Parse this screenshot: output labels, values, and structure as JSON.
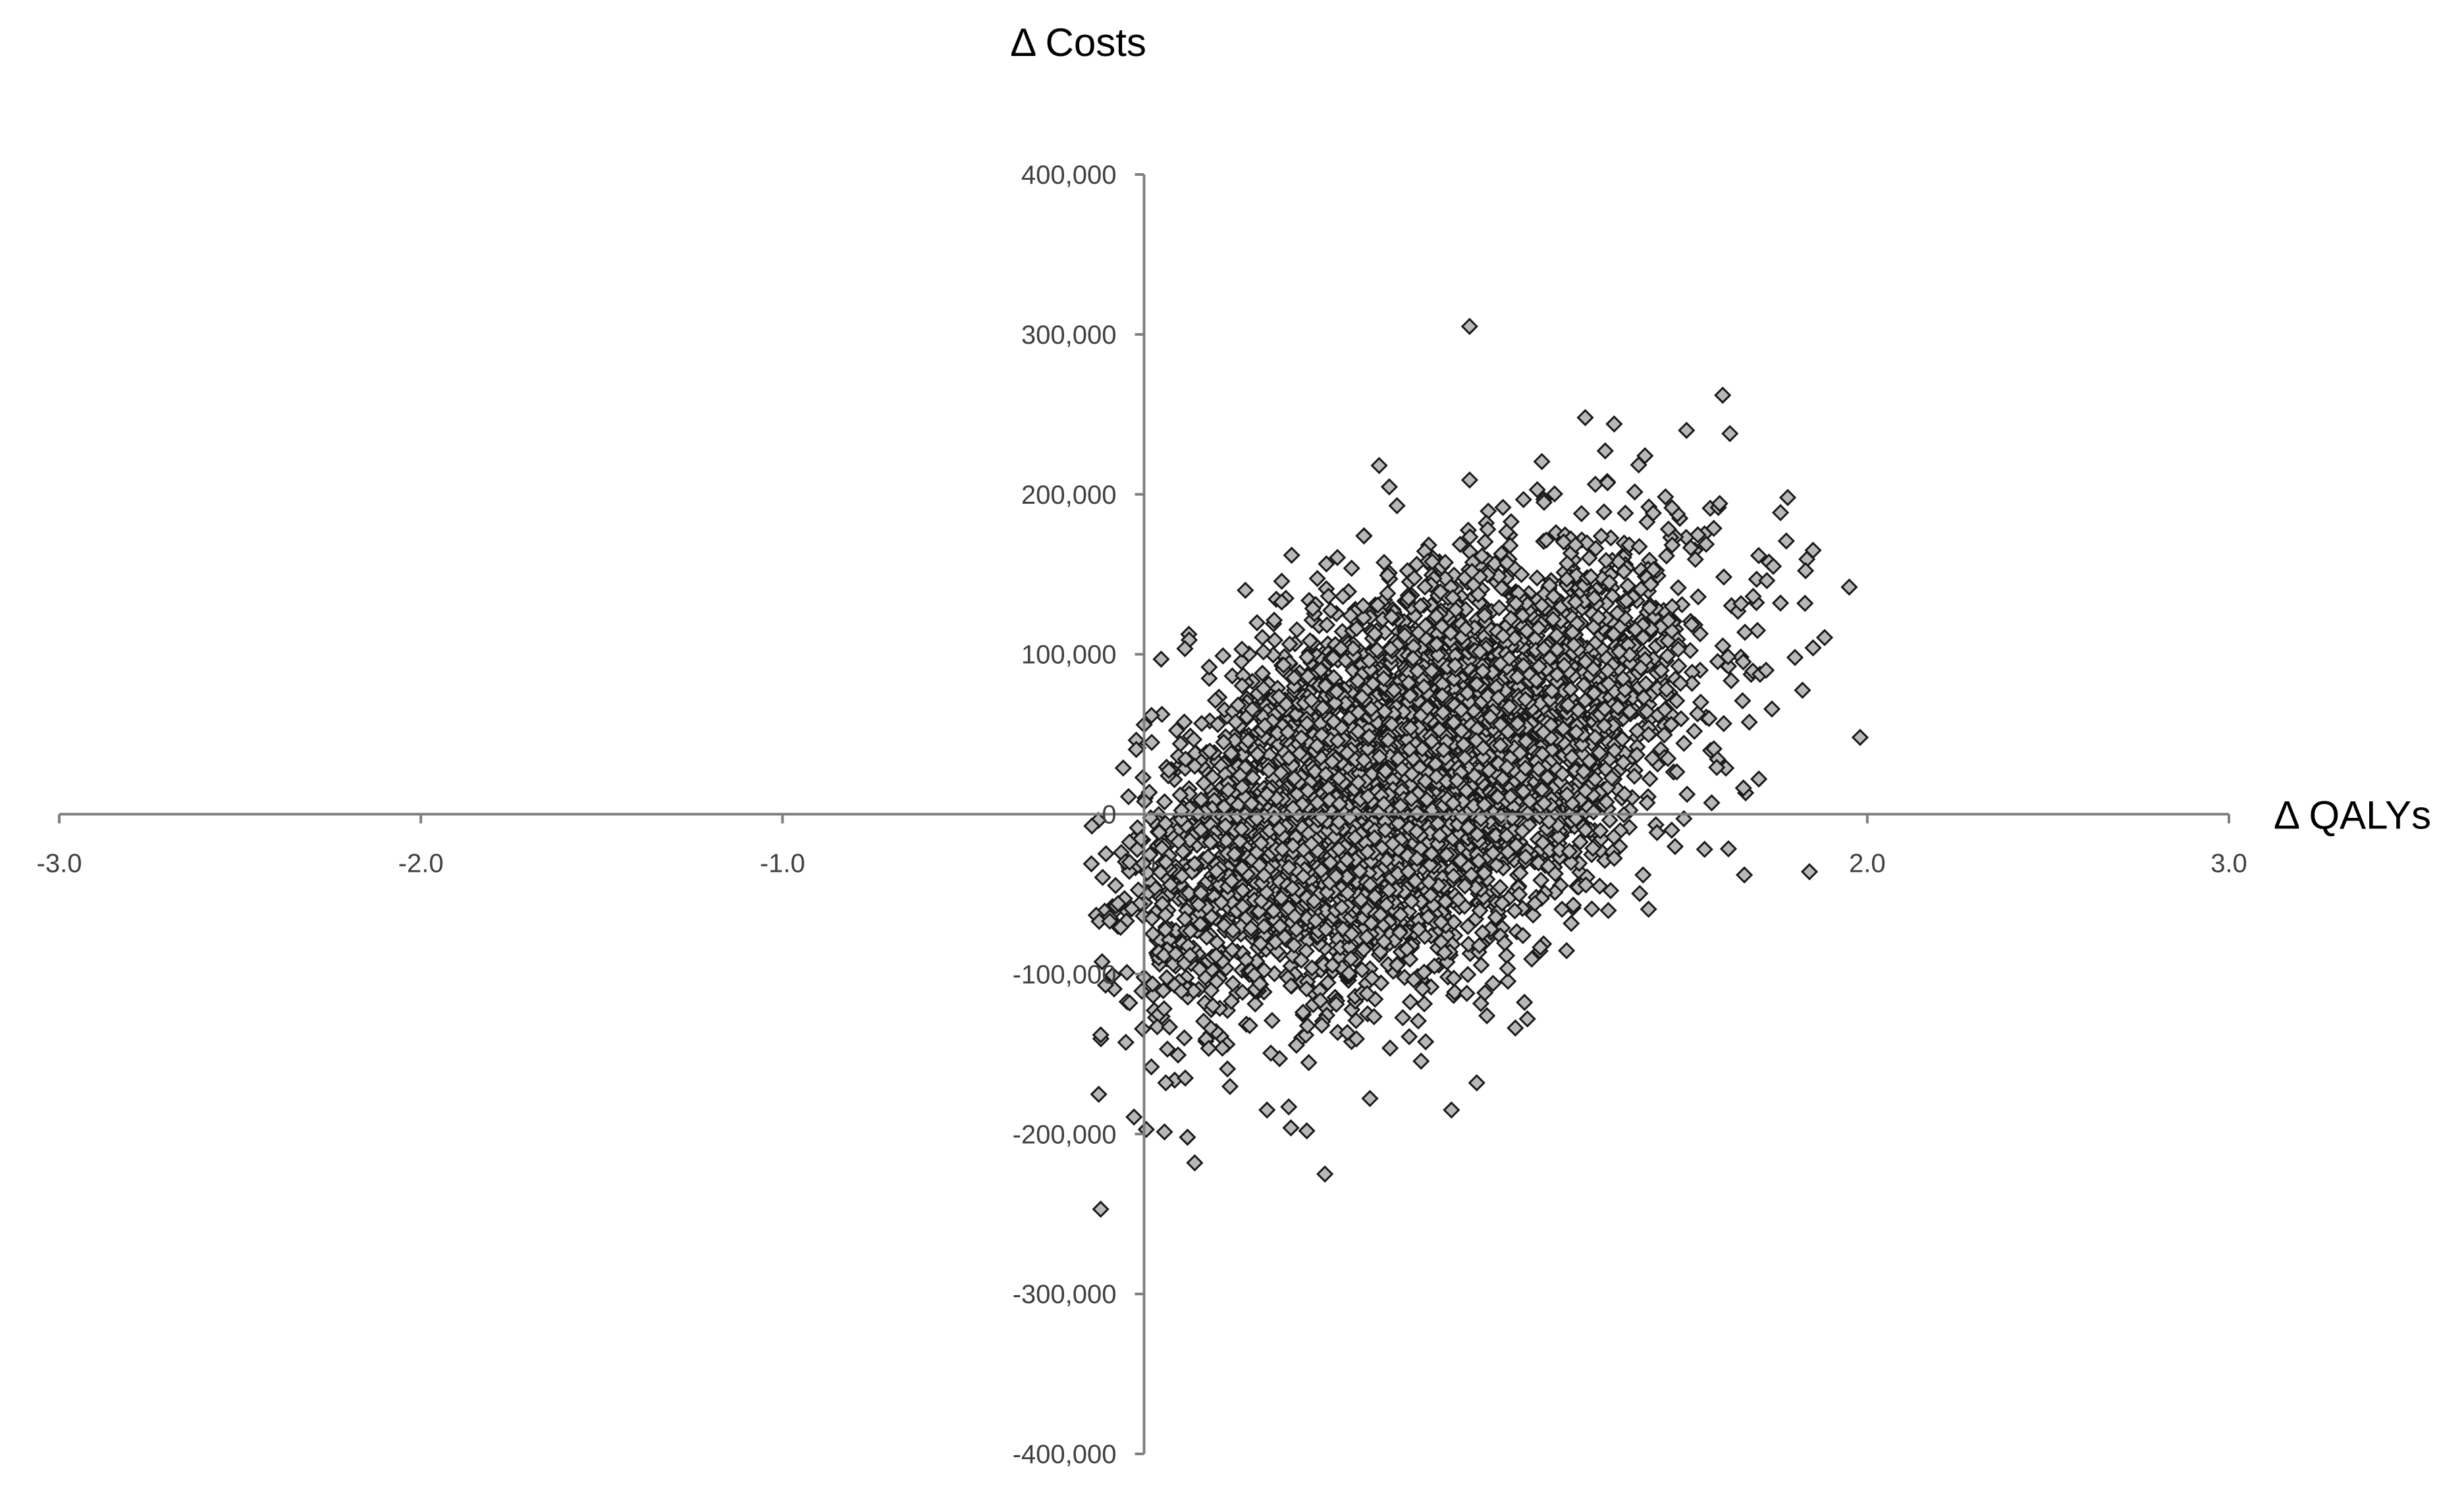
{
  "chart_data": {
    "type": "scatter",
    "title": "",
    "xlabel": "Δ QALYs",
    "ylabel": "Δ Costs",
    "xlim": [
      -3.0,
      3.0
    ],
    "ylim": [
      -400000,
      400000
    ],
    "x_ticks": [
      "-3.0",
      "-2.0",
      "-1.0",
      "2.0",
      "3.0"
    ],
    "y_ticks": [
      "400,000",
      "300,000",
      "200,000",
      "100,000",
      "0",
      "-100,000",
      "-200,000",
      "-300,000",
      "-400,000"
    ],
    "x_origin_label": "0.0",
    "grid": false,
    "legend": "none",
    "marker": "diamond",
    "marker_fill": "#b8b8b8",
    "marker_edge": "#1a1a1a",
    "axis_color": "#7f7f7f",
    "cloud": {
      "n_points": 5000,
      "center": [
        0.72,
        20000
      ],
      "sd": [
        0.36,
        68000
      ],
      "correlation": 0.5,
      "x_min": -0.15,
      "x_max": 2.0,
      "y_min": -250000,
      "y_max": 305000
    },
    "points": [
      [
        0.9,
        305000
      ],
      [
        1.6,
        262000
      ],
      [
        0.65,
        218000
      ],
      [
        1.22,
        248000
      ],
      [
        1.3,
        244000
      ],
      [
        1.85,
        165000
      ],
      [
        1.95,
        142000
      ],
      [
        1.98,
        48000
      ],
      [
        1.84,
        -36000
      ],
      [
        1.7,
        22000
      ],
      [
        1.66,
        -38000
      ],
      [
        1.62,
        238000
      ],
      [
        1.78,
        198000
      ],
      [
        0.28,
        140000
      ],
      [
        0.18,
        92000
      ],
      [
        -0.12,
        -138000
      ],
      [
        -0.12,
        -247000
      ],
      [
        0.14,
        -218000
      ],
      [
        0.5,
        -225000
      ],
      [
        0.85,
        -185000
      ],
      [
        0.92,
        -168000
      ],
      [
        0.45,
        -198000
      ],
      [
        0.12,
        -202000
      ],
      [
        0.06,
        -168000
      ],
      [
        0.02,
        -158000
      ],
      [
        0.0,
        -102000
      ],
      [
        -0.04,
        -118000
      ],
      [
        0.34,
        -185000
      ],
      [
        0.4,
        -183000
      ],
      [
        1.06,
        -128000
      ],
      [
        1.26,
        -45000
      ],
      [
        1.38,
        -38000
      ],
      [
        1.55,
        -22000
      ],
      [
        1.72,
        90000
      ],
      [
        1.8,
        98000
      ],
      [
        1.85,
        104000
      ],
      [
        1.74,
        155000
      ],
      [
        1.76,
        132000
      ],
      [
        0.06,
        -30000
      ],
      [
        -0.04,
        -30000
      ],
      [
        0.1,
        12000
      ],
      [
        0.14,
        30000
      ],
      [
        0.22,
        45000
      ],
      [
        1.5,
        240000
      ]
    ]
  }
}
